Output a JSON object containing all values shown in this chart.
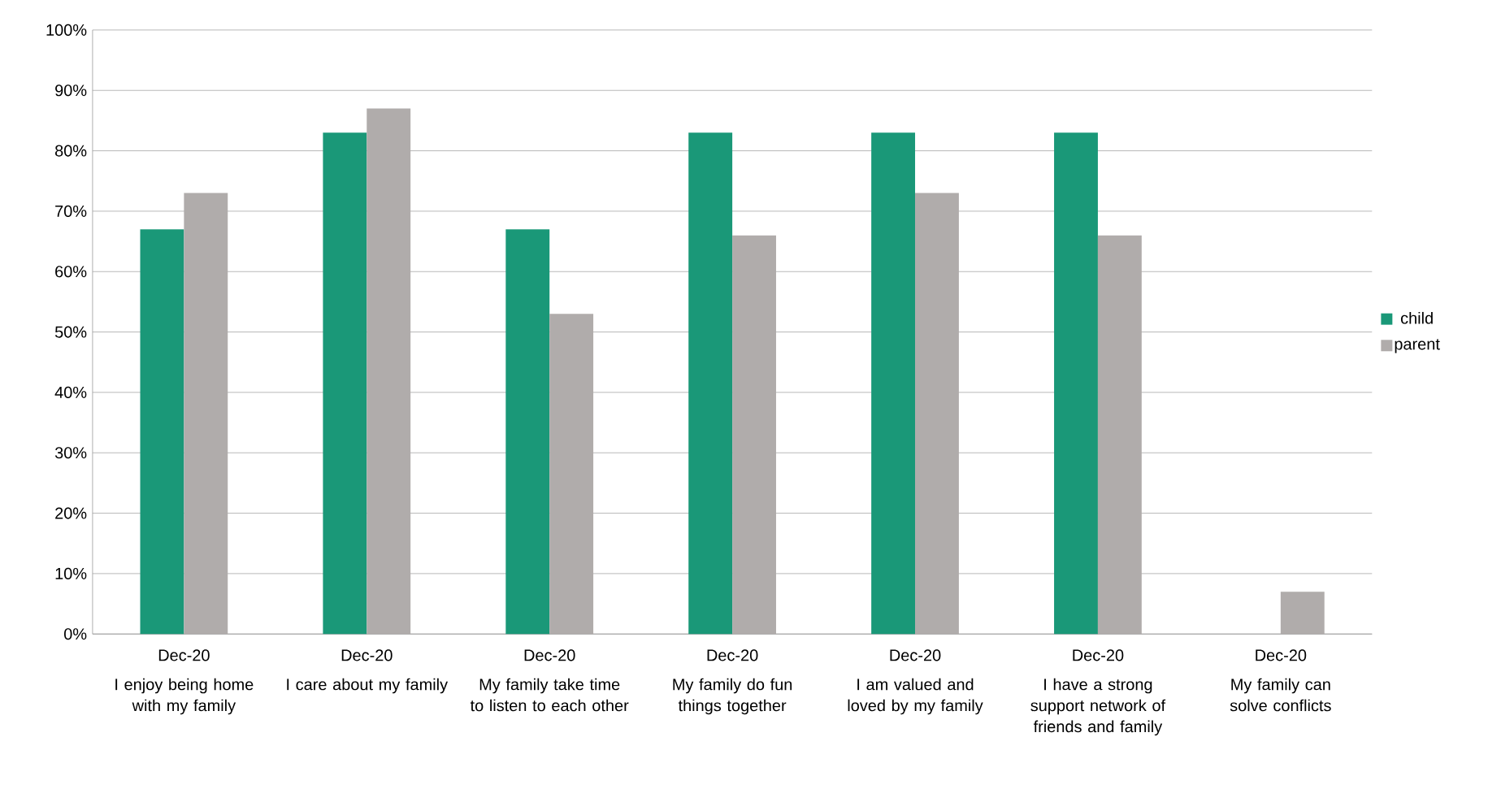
{
  "chart_data": {
    "type": "bar",
    "categories": [
      "I enjoy being home with my family",
      "I care about my family",
      "My family take time to listen to each other",
      "My family do fun things together",
      "I am valued and loved by my family",
      "I have a strong support network of friends and family",
      "My family can solve conflicts"
    ],
    "annotations": [
      "Dec-20",
      "Dec-20",
      "Dec-20",
      "Dec-20",
      "Dec-20",
      "Dec-20",
      "Dec-20"
    ],
    "series": [
      {
        "name": "child",
        "color": "#1a9878",
        "values": [
          67,
          83,
          67,
          83,
          83,
          83,
          null
        ]
      },
      {
        "name": "parent",
        "color": "#b0acab",
        "values": [
          73,
          87,
          53,
          66,
          73,
          66,
          7
        ]
      }
    ],
    "ylim": [
      0,
      100
    ],
    "yticks": [
      {
        "value": 0,
        "label": "0%"
      },
      {
        "value": 10,
        "label": "10%"
      },
      {
        "value": 20,
        "label": "20%"
      },
      {
        "value": 30,
        "label": "30%"
      },
      {
        "value": 40,
        "label": "40%"
      },
      {
        "value": 50,
        "label": "50%"
      },
      {
        "value": 60,
        "label": "60%"
      },
      {
        "value": 70,
        "label": "70%"
      },
      {
        "value": 80,
        "label": "80%"
      },
      {
        "value": 90,
        "label": "90%"
      },
      {
        "value": 100,
        "label": "100%"
      }
    ],
    "grid": "y",
    "legend": "right"
  }
}
